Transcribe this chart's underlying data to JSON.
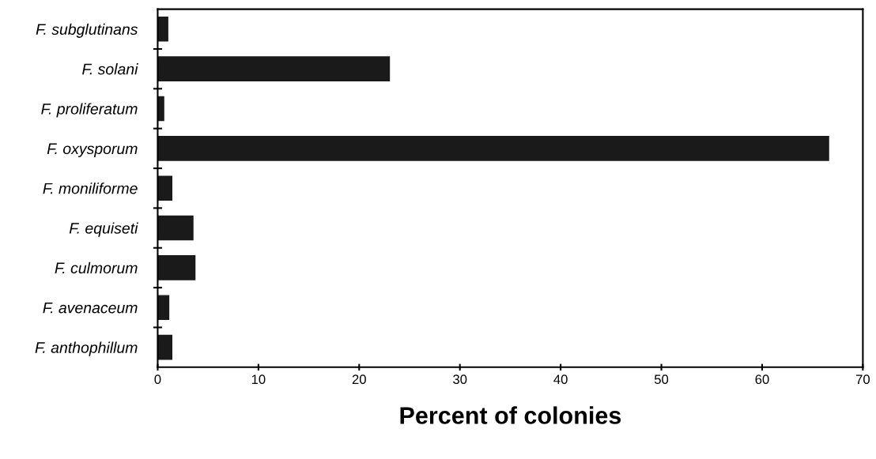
{
  "chart_data": {
    "type": "bar",
    "orientation": "horizontal",
    "xlabel": "Percent of colonies",
    "categories": [
      "F. subglutinans",
      "F. solani",
      "F. proliferatum",
      "F. oxysporum",
      "F. moniliforme",
      "F. equiseti",
      "F. culmorum",
      "F. avenaceum",
      "F. anthophillum"
    ],
    "values": [
      1.0,
      23.0,
      0.6,
      66.6,
      1.4,
      3.5,
      3.7,
      1.1,
      1.4
    ],
    "color": "#1a1a1a",
    "xlim": [
      0,
      70
    ],
    "xticks": [
      0,
      10,
      20,
      30,
      40,
      50,
      60,
      70
    ],
    "grid": false,
    "legend": false
  }
}
